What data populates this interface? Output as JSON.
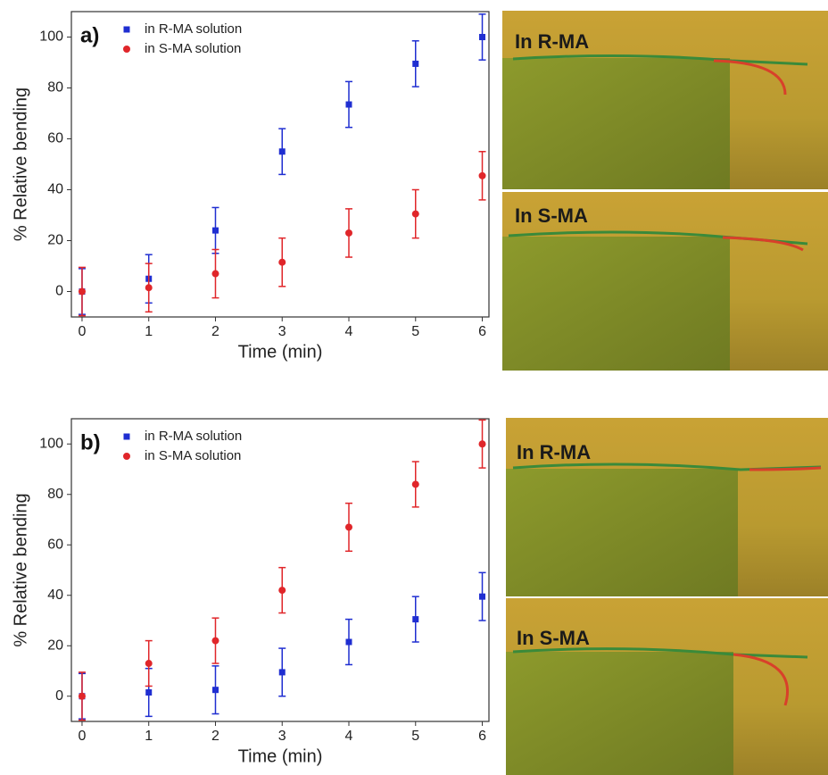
{
  "chart_data": [
    {
      "type": "scatter",
      "panel_label": "a)",
      "x_label": "Time (min)",
      "y_label": "% Relative bending",
      "x": [
        0,
        1,
        2,
        3,
        4,
        5,
        6
      ],
      "series": [
        {
          "name": "in R-MA solution",
          "color": "#1f2ed1",
          "marker": "square",
          "values": [
            0,
            5,
            24,
            55,
            73.5,
            89.5,
            100
          ],
          "errors": [
            9,
            9.5,
            9,
            9,
            9,
            9,
            9
          ]
        },
        {
          "name": "in S-MA solution",
          "color": "#e0262a",
          "marker": "circle",
          "values": [
            0,
            1.5,
            7,
            11.5,
            23,
            30.5,
            45.5
          ],
          "errors": [
            9.5,
            9.5,
            9.5,
            9.5,
            9.5,
            9.5,
            9.5
          ]
        }
      ],
      "xlim": [
        -0.16,
        6.1
      ],
      "ylim": [
        -10,
        110
      ],
      "xticks": [
        0,
        1,
        2,
        3,
        4,
        5,
        6
      ],
      "yticks": [
        0,
        20,
        40,
        60,
        80,
        100
      ]
    },
    {
      "type": "scatter",
      "panel_label": "b)",
      "x_label": "Time (min)",
      "y_label": "% Relative bending",
      "x": [
        0,
        1,
        2,
        3,
        4,
        5,
        6
      ],
      "series": [
        {
          "name": "in R-MA solution",
          "color": "#1f2ed1",
          "marker": "square",
          "values": [
            0,
            1.5,
            2.5,
            9.5,
            21.5,
            30.5,
            39.5
          ],
          "errors": [
            9,
            9.5,
            9.5,
            9.5,
            9,
            9,
            9.5
          ]
        },
        {
          "name": "in S-MA solution",
          "color": "#e0262a",
          "marker": "circle",
          "values": [
            0,
            13,
            22,
            42,
            67,
            84,
            100
          ],
          "errors": [
            9.5,
            9,
            9,
            9,
            9.5,
            9,
            9.5
          ]
        }
      ],
      "xlim": [
        -0.16,
        6.1
      ],
      "ylim": [
        -10,
        110
      ],
      "xticks": [
        0,
        1,
        2,
        3,
        4,
        5,
        6
      ],
      "yticks": [
        0,
        20,
        40,
        60,
        80,
        100
      ]
    }
  ],
  "photos": [
    {
      "label": "In R-MA"
    },
    {
      "label": "In S-MA"
    },
    {
      "label": "In R-MA"
    },
    {
      "label": "In S-MA"
    }
  ]
}
